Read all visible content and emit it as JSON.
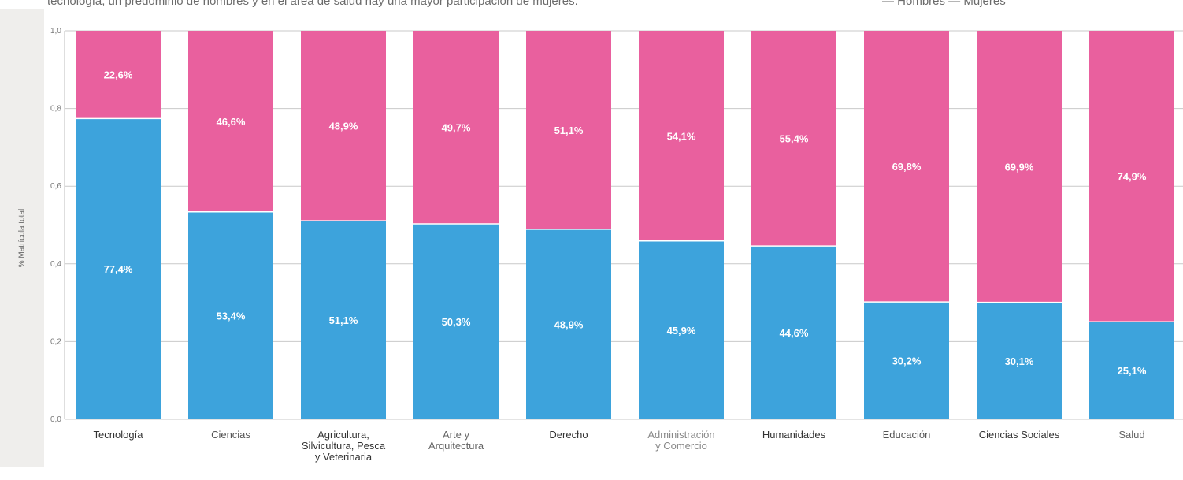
{
  "header": {
    "left_text": "tecnología, un predominio de hombres y en el área de salud hay una mayor participación de mujeres.",
    "right_text": "— Hombres   — Mujeres"
  },
  "chart_data": {
    "type": "bar",
    "stacked": true,
    "ylabel": "% Matrícula total",
    "ylim": [
      0,
      1.0
    ],
    "yticks": [
      "0,0",
      "0,2",
      "0,4",
      "0,6",
      "0,8",
      "1,0"
    ],
    "grid": true,
    "categories": [
      [
        "Tecnología"
      ],
      [
        "Ciencias"
      ],
      [
        "Agricultura,",
        "Silvicultura, Pesca",
        "y Veterinaria"
      ],
      [
        "Arte y",
        "Arquitectura"
      ],
      [
        "Derecho"
      ],
      [
        "Administración",
        "y Comercio"
      ],
      [
        "Humanidades"
      ],
      [
        "Educación"
      ],
      [
        "Ciencias Sociales"
      ],
      [
        "Salud"
      ]
    ],
    "category_label_colors": [
      "#333333",
      "#555555",
      "#333333",
      "#666666",
      "#333333",
      "#888888",
      "#333333",
      "#555555",
      "#333333",
      "#666666"
    ],
    "series": [
      {
        "color": "#3da3dc",
        "values": [
          0.774,
          0.534,
          0.511,
          0.503,
          0.489,
          0.459,
          0.446,
          0.302,
          0.301,
          0.251
        ],
        "labels": [
          "77,4%",
          "53,4%",
          "51,1%",
          "50,3%",
          "48,9%",
          "45,9%",
          "44,6%",
          "30,2%",
          "30,1%",
          "25,1%"
        ]
      },
      {
        "color": "#e9609e",
        "values": [
          0.226,
          0.466,
          0.489,
          0.497,
          0.511,
          0.541,
          0.554,
          0.698,
          0.699,
          0.749
        ],
        "labels": [
          "22,6%",
          "46,6%",
          "48,9%",
          "49,7%",
          "51,1%",
          "54,1%",
          "55,4%",
          "69,8%",
          "69,9%",
          "74,9%"
        ]
      }
    ]
  }
}
